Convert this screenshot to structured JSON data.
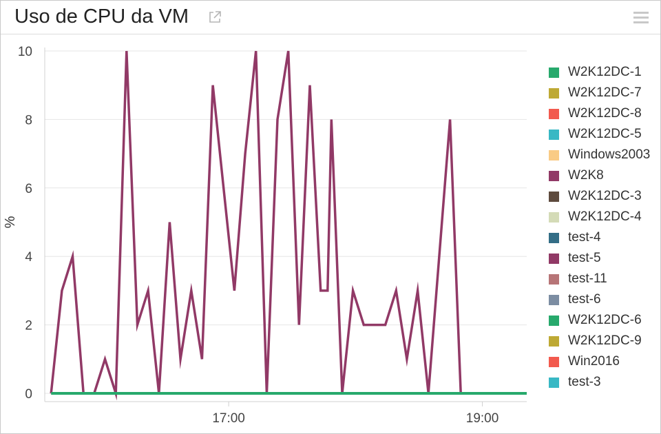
{
  "widget": {
    "title": "Uso de CPU da VM",
    "popout_icon": "external-link-icon",
    "menu_icon": "hamburger-menu-icon"
  },
  "colors": {
    "gridline": "#e6e6e6",
    "axis": "#d0d0d0",
    "tick_text": "#444444"
  },
  "chart_data": {
    "type": "line",
    "title": "Uso de CPU da VM",
    "ylabel": "%",
    "xlabel": "",
    "ylim": [
      0,
      10
    ],
    "yticks": [
      "0",
      "2",
      "4",
      "6",
      "8",
      "10"
    ],
    "xticks": [
      {
        "label": "17:00",
        "hour": 17.0
      },
      {
        "label": "19:00",
        "hour": 19.0
      }
    ],
    "xlim_hours": [
      15.55,
      19.35
    ],
    "grid": "horizontal",
    "legend_position": "right",
    "series": [
      {
        "name": "W2K12DC-1",
        "color": "#27a96c",
        "x": [
          15.6,
          19.35
        ],
        "y": [
          0,
          0
        ]
      },
      {
        "name": "W2K12DC-7",
        "color": "#bea934",
        "x": [],
        "y": []
      },
      {
        "name": "W2K12DC-8",
        "color": "#f25a4e",
        "x": [],
        "y": []
      },
      {
        "name": "W2K12DC-5",
        "color": "#38b8c4",
        "x": [],
        "y": []
      },
      {
        "name": "Windows2003",
        "color": "#f9cb85",
        "x": [],
        "y": []
      },
      {
        "name": "W2K8",
        "color": "#913966",
        "x": [],
        "y": []
      },
      {
        "name": "W2K12DC-3",
        "color": "#5e4a3d",
        "x": [],
        "y": []
      },
      {
        "name": "W2K12DC-4",
        "color": "#d4dbb7",
        "x": [],
        "y": []
      },
      {
        "name": "test-4",
        "color": "#336d86",
        "x": [],
        "y": []
      },
      {
        "name": "test-5",
        "color": "#913966",
        "x": [
          15.6,
          15.685,
          15.77,
          15.855,
          15.94,
          16.025,
          16.11,
          16.195,
          16.28,
          16.365,
          16.45,
          16.535,
          16.62,
          16.705,
          16.79,
          16.875,
          16.96,
          17.045,
          17.13,
          17.215,
          17.3,
          17.385,
          17.47,
          17.555,
          17.64,
          17.725,
          17.78,
          17.81,
          17.895,
          17.98,
          18.065,
          18.15,
          18.235,
          18.32,
          18.405,
          18.49,
          18.575,
          18.66,
          18.745,
          18.83,
          18.915,
          19.0,
          19.085,
          19.17
        ],
        "y": [
          0,
          3,
          4,
          0,
          0,
          1,
          0,
          10,
          2,
          3,
          0,
          5,
          1,
          3,
          1,
          9,
          6,
          3,
          7,
          10,
          0,
          8,
          10,
          2,
          9,
          3,
          3,
          8,
          0,
          3,
          2,
          2,
          2,
          3,
          1,
          3,
          0,
          4,
          8,
          0,
          0,
          0,
          0,
          0
        ]
      },
      {
        "name": "test-11",
        "color": "#b77577",
        "x": [],
        "y": []
      },
      {
        "name": "test-6",
        "color": "#7c8da2",
        "x": [],
        "y": []
      },
      {
        "name": "W2K12DC-6",
        "color": "#27a96c",
        "x": [],
        "y": []
      },
      {
        "name": "W2K12DC-9",
        "color": "#bea934",
        "x": [],
        "y": []
      },
      {
        "name": "Win2016",
        "color": "#f25a4e",
        "x": [],
        "y": []
      },
      {
        "name": "test-3",
        "color": "#38b8c4",
        "x": [],
        "y": []
      }
    ]
  }
}
